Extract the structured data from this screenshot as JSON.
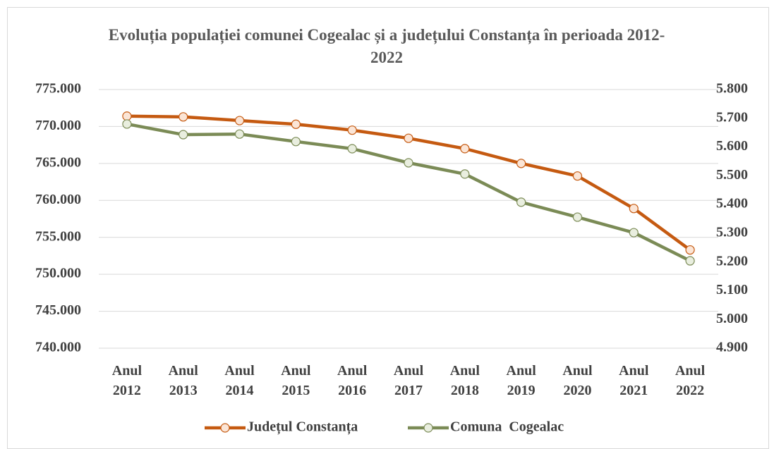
{
  "chart_data": {
    "type": "line",
    "title": "Evoluția populației comunei Cogealac și a județului Constanța în perioada 2012-2022",
    "categories": [
      "Anul 2012",
      "Anul 2013",
      "Anul 2014",
      "Anul 2015",
      "Anul 2016",
      "Anul 2017",
      "Anul 2018",
      "Anul 2019",
      "Anul 2020",
      "Anul 2021",
      "Anul 2022"
    ],
    "series": [
      {
        "name": "Județul Constanța",
        "color": "#c55a11",
        "marker_fill": "#fbe5d6",
        "axis": "y",
        "values": [
          771400,
          771300,
          770800,
          770300,
          769500,
          768400,
          767000,
          765000,
          763300,
          758900,
          753300
        ]
      },
      {
        "name": "Comuna  Cogealac",
        "color": "#7b8b56",
        "marker_fill": "#e9eedf",
        "axis": "y2",
        "values": [
          5680,
          5643,
          5645,
          5619,
          5594,
          5545,
          5506,
          5408,
          5356,
          5302,
          5204
        ]
      }
    ],
    "ylim": [
      740000,
      775000
    ],
    "yticks": [
      {
        "value": 740000,
        "label": "740.000"
      },
      {
        "value": 745000,
        "label": "745.000"
      },
      {
        "value": 750000,
        "label": "750.000"
      },
      {
        "value": 755000,
        "label": "755.000"
      },
      {
        "value": 760000,
        "label": "760.000"
      },
      {
        "value": 765000,
        "label": "765.000"
      },
      {
        "value": 770000,
        "label": "770.000"
      },
      {
        "value": 775000,
        "label": "775.000"
      }
    ],
    "y2lim": [
      4900,
      5800
    ],
    "y2ticks": [
      {
        "value": 4900,
        "label": "4.900"
      },
      {
        "value": 5000,
        "label": "5.000"
      },
      {
        "value": 5100,
        "label": "5.100"
      },
      {
        "value": 5200,
        "label": "5.200"
      },
      {
        "value": 5300,
        "label": "5.300"
      },
      {
        "value": 5400,
        "label": "5.400"
      },
      {
        "value": 5500,
        "label": "5.500"
      },
      {
        "value": 5600,
        "label": "5.600"
      },
      {
        "value": 5700,
        "label": "5.700"
      },
      {
        "value": 5800,
        "label": "5.800"
      }
    ],
    "grid": true,
    "legend": "bottom"
  }
}
